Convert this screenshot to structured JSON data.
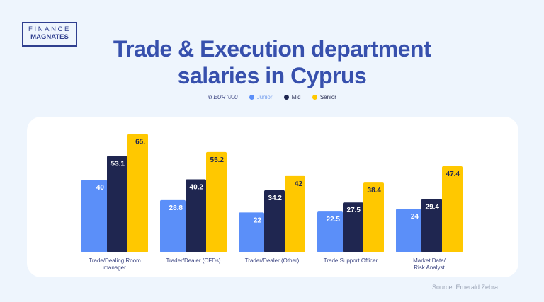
{
  "logo": {
    "line1": "FINANCE",
    "line2": "MAGNATES"
  },
  "chart_data": {
    "type": "bar",
    "title": "Trade & Execution department salaries in Cyprus",
    "unit_label": "in EUR '000",
    "categories": [
      "Trade/Dealing Room manager",
      "Trader/Dealer (CFDs)",
      "Trader/Dealer (Other)",
      "Trade Support Officer",
      "Market Data/ Risk Analyst"
    ],
    "series": [
      {
        "name": "Junior",
        "color": "#5b8ff9",
        "values": [
          40,
          28.8,
          22,
          22.5,
          24
        ],
        "labels": [
          "40",
          "28.8",
          "22",
          "22.5",
          "24"
        ]
      },
      {
        "name": "Mid",
        "color": "#1f2650",
        "values": [
          53.1,
          40.2,
          34.2,
          27.5,
          29.4
        ],
        "labels": [
          "53.1",
          "40.2",
          "34.2",
          "27.5",
          "29.4"
        ]
      },
      {
        "name": "Senior",
        "color": "#ffc800",
        "values": [
          65,
          55.2,
          42,
          38.4,
          47.4
        ],
        "labels": [
          "65.",
          "55.2",
          "42",
          "38.4",
          "47.4"
        ]
      }
    ],
    "grid": false,
    "legend_position": "top"
  },
  "source": "Source: Emerald Zebra"
}
